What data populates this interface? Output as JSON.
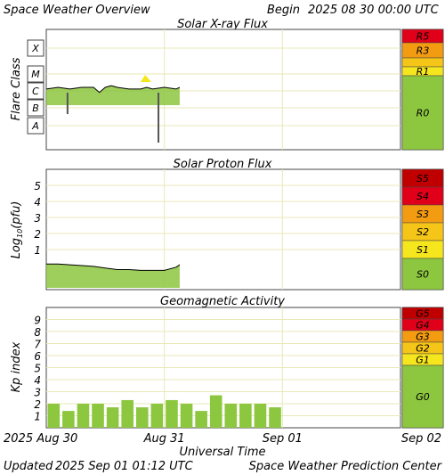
{
  "header": {
    "title": "Space Weather Overview",
    "begin_label": "Begin",
    "begin_value": "2025 08 30 00:00 UTC"
  },
  "footer": {
    "updated_label": "Updated",
    "updated_value": "2025 Sep 01 01:12 UTC",
    "credit": "Space Weather Prediction Center"
  },
  "colors": {
    "plot_bg": "#ffffff",
    "grid": "#e8e8b8",
    "trace": "#000000",
    "fill_green": "#8dc63f",
    "bar_green": "#8dc63f",
    "yellow": "#f5e61e",
    "orange": "#f39c12",
    "red_orange": "#e8590c",
    "red": "#e0001a",
    "dark_red": "#c00000"
  },
  "chart_data": [
    {
      "type": "line",
      "title": "Solar X-ray Flux",
      "ylabel": "Flare Class",
      "y_scale": "log",
      "y_ticks": [
        "X",
        "M",
        "C",
        "B",
        "A"
      ],
      "x_ticks": [
        "2025 Aug 30",
        "Aug 31",
        "Sep 01",
        "Sep 02"
      ],
      "x_range_days": [
        0,
        3
      ],
      "data_range_days": [
        0,
        1.13
      ],
      "x": [
        0,
        0.1,
        0.2,
        0.3,
        0.4,
        0.45,
        0.5,
        0.55,
        0.6,
        0.7,
        0.8,
        0.85,
        0.9,
        1.0,
        1.1,
        1.13
      ],
      "y_class_index": [
        2.6,
        2.7,
        2.6,
        2.7,
        2.7,
        2.4,
        2.7,
        2.8,
        2.7,
        2.6,
        2.6,
        2.7,
        2.6,
        2.7,
        2.6,
        2.7
      ],
      "scale_labels": [
        "R5",
        "R3",
        "",
        "R1",
        "R0"
      ],
      "scale_colors": [
        "#e0001a",
        "#f39c12",
        "#f5c518",
        "#f5e61e",
        "#8dc63f"
      ]
    },
    {
      "type": "line",
      "title": "Solar Proton Flux",
      "ylabel": "Log10(pfu)",
      "y_ticks": [
        "5",
        "4",
        "3",
        "2",
        "1"
      ],
      "ylim": [
        -1.5,
        6
      ],
      "x_ticks": [
        "2025 Aug 30",
        "Aug 31",
        "Sep 01",
        "Sep 02"
      ],
      "x_range_days": [
        0,
        3
      ],
      "data_range_days": [
        0,
        1.13
      ],
      "x": [
        0,
        0.1,
        0.2,
        0.3,
        0.4,
        0.5,
        0.6,
        0.7,
        0.8,
        0.9,
        1.0,
        1.1,
        1.13
      ],
      "values": [
        0.1,
        0.1,
        0.05,
        0.0,
        -0.05,
        -0.15,
        -0.25,
        -0.25,
        -0.3,
        -0.3,
        -0.3,
        -0.1,
        0.05
      ],
      "scale_labels": [
        "S5",
        "S4",
        "S3",
        "S2",
        "S1",
        "S0"
      ],
      "scale_colors": [
        "#c00000",
        "#e0001a",
        "#f39c12",
        "#f5c518",
        "#f5e61e",
        "#8dc63f"
      ]
    },
    {
      "type": "bar",
      "title": "Geomagnetic Activity",
      "ylabel": "Kp index",
      "y_ticks": [
        "9",
        "8",
        "7",
        "6",
        "5",
        "4",
        "3",
        "2",
        "1"
      ],
      "ylim": [
        0,
        10
      ],
      "x_ticks": [
        "2025 Aug 30",
        "Aug 31",
        "Sep 01",
        "Sep 02"
      ],
      "x_label": "Universal Time",
      "bar_hours": [
        0,
        3,
        6,
        9,
        12,
        15,
        18,
        21,
        24,
        27,
        30,
        33,
        36,
        39,
        42,
        45
      ],
      "values": [
        2.0,
        1.4,
        2.0,
        2.0,
        1.7,
        2.3,
        1.7,
        2.0,
        2.3,
        2.0,
        1.4,
        2.7,
        2.0,
        2.0,
        2.0,
        1.7
      ],
      "scale_labels": [
        "G5",
        "G4",
        "G3",
        "G2",
        "G1",
        "G0"
      ],
      "scale_colors": [
        "#c00000",
        "#e0001a",
        "#f39c12",
        "#f5c518",
        "#f5e61e",
        "#8dc63f"
      ]
    }
  ]
}
